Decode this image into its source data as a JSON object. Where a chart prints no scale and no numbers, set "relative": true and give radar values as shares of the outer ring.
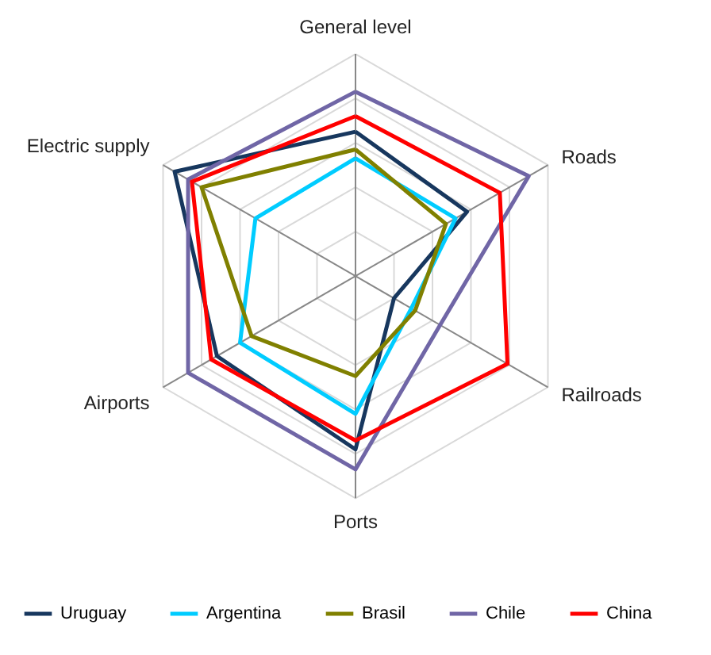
{
  "chart_data": {
    "type": "radar",
    "relative": true,
    "grid": true,
    "legend": "bottom",
    "categories": [
      "General level",
      "Roads",
      "Railroads",
      "Ports",
      "Airports",
      "Electric supply"
    ],
    "series": [
      {
        "name": "Uruguay",
        "color": "#17375e",
        "values": [
          0.65,
          0.58,
          0.2,
          0.78,
          0.72,
          0.94
        ]
      },
      {
        "name": "Argentina",
        "color": "#00ccff",
        "values": [
          0.53,
          0.52,
          0.29,
          0.62,
          0.6,
          0.52
        ]
      },
      {
        "name": "Brasil",
        "color": "#808000",
        "values": [
          0.57,
          0.47,
          0.31,
          0.45,
          0.54,
          0.8
        ]
      },
      {
        "name": "Chile",
        "color": "#7066a6",
        "values": [
          0.83,
          0.9,
          0.44,
          0.87,
          0.87,
          0.87
        ]
      },
      {
        "name": "China",
        "color": "#ff0000",
        "values": [
          0.72,
          0.75,
          0.79,
          0.74,
          0.75,
          0.85
        ]
      }
    ]
  }
}
